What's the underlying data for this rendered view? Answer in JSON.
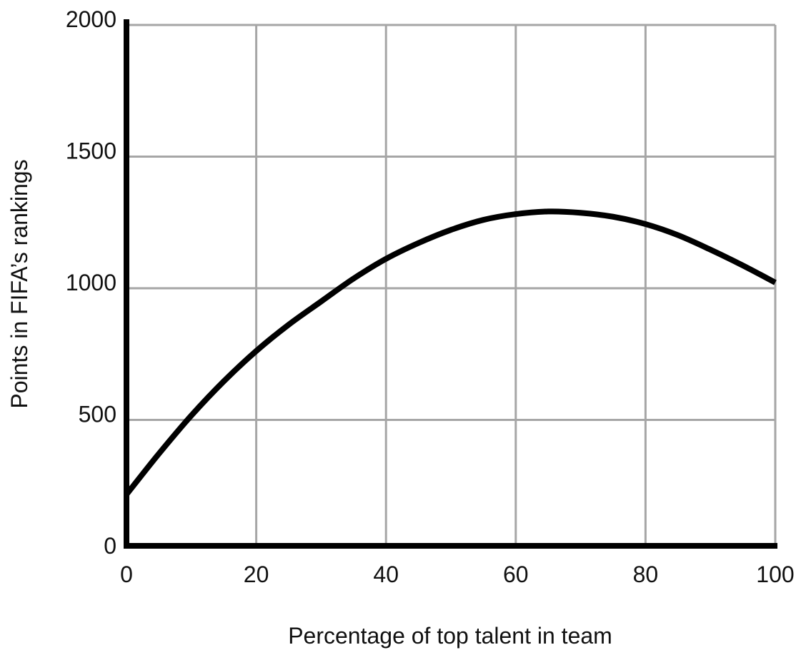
{
  "chart_data": {
    "type": "line",
    "title": "",
    "xlabel": "Percentage of top talent in team",
    "ylabel": "Points in FIFA’s rankings",
    "xlim": [
      0,
      100
    ],
    "ylim": [
      0,
      2000
    ],
    "x_ticks": [
      0,
      20,
      40,
      60,
      80,
      100
    ],
    "y_ticks": [
      0,
      500,
      1000,
      1500,
      2000
    ],
    "grid": true,
    "legend": "none",
    "colors": {
      "line": "#000000",
      "grid": "#a6a6a6",
      "axis": "#000000"
    },
    "series": [
      {
        "x": [
          0,
          5,
          10,
          15,
          20,
          25,
          30,
          35,
          40,
          45,
          50,
          55,
          60,
          65,
          70,
          75,
          80,
          85,
          90,
          95,
          100
        ],
        "y": [
          195,
          350,
          495,
          625,
          740,
          840,
          928,
          1015,
          1090,
          1150,
          1200,
          1238,
          1260,
          1270,
          1265,
          1250,
          1222,
          1180,
          1125,
          1065,
          1000
        ]
      }
    ]
  }
}
